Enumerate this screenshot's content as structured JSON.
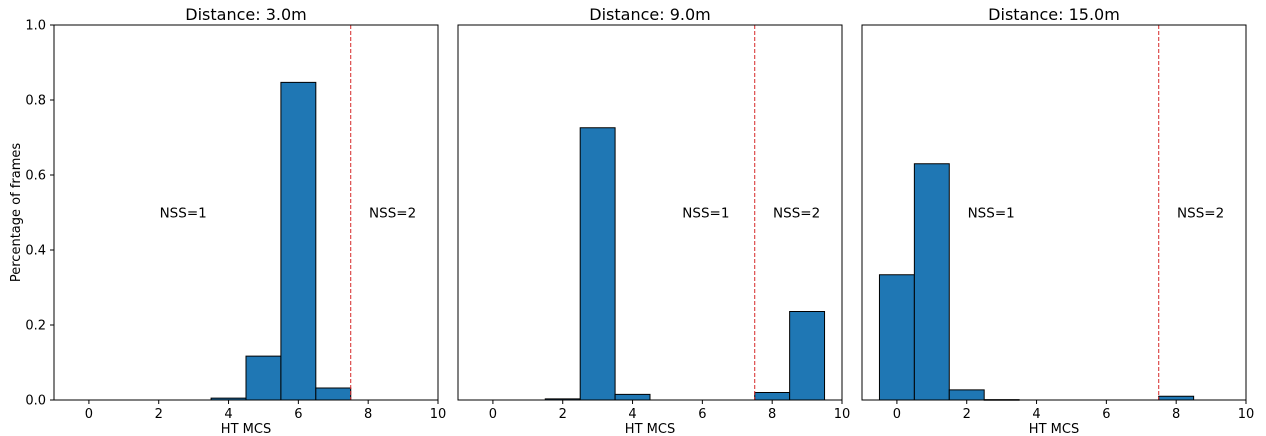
{
  "chart_data": [
    {
      "type": "bar",
      "title": "Distance: 3.0m",
      "xlabel": "HT MCS",
      "ylabel": "Percentage of frames",
      "xlim": [
        -1,
        10
      ],
      "ylim": [
        0,
        1.0
      ],
      "xticks": [
        0,
        2,
        4,
        6,
        8,
        10
      ],
      "yticks": [
        0.0,
        0.2,
        0.4,
        0.6,
        0.8,
        1.0
      ],
      "ytick_labels": [
        "0.0",
        "0.2",
        "0.4",
        "0.6",
        "0.8",
        "1.0"
      ],
      "bar_color": "#1f77b4",
      "threshold_color": "#d62728",
      "threshold_x": 7.5,
      "annotations": [
        {
          "text": "NSS=1",
          "x": 2.7,
          "y": 0.5
        },
        {
          "text": "NSS=2",
          "x": 8.7,
          "y": 0.5
        }
      ],
      "x": [
        0,
        1,
        2,
        3,
        4,
        5,
        6,
        7,
        8,
        9
      ],
      "values": [
        0.0,
        0.0,
        0.0,
        0.0,
        0.005,
        0.117,
        0.847,
        0.032,
        0.0,
        0.0
      ]
    },
    {
      "type": "bar",
      "title": "Distance: 9.0m",
      "xlabel": "HT MCS",
      "ylabel": "",
      "xlim": [
        -1,
        10
      ],
      "ylim": [
        0,
        1.0
      ],
      "xticks": [
        0,
        2,
        4,
        6,
        8,
        10
      ],
      "yticks": [],
      "ytick_labels": [],
      "bar_color": "#1f77b4",
      "threshold_color": "#d62728",
      "threshold_x": 7.5,
      "annotations": [
        {
          "text": "NSS=1",
          "x": 6.1,
          "y": 0.5
        },
        {
          "text": "NSS=2",
          "x": 8.7,
          "y": 0.5
        }
      ],
      "x": [
        0,
        1,
        2,
        3,
        4,
        5,
        6,
        7,
        8,
        9
      ],
      "values": [
        0.0,
        0.0,
        0.003,
        0.726,
        0.015,
        0.0,
        0.0,
        0.0,
        0.02,
        0.236
      ]
    },
    {
      "type": "bar",
      "title": "Distance: 15.0m",
      "xlabel": "HT MCS",
      "ylabel": "",
      "xlim": [
        -1,
        10
      ],
      "ylim": [
        0,
        1.0
      ],
      "xticks": [
        0,
        2,
        4,
        6,
        8,
        10
      ],
      "yticks": [],
      "ytick_labels": [],
      "bar_color": "#1f77b4",
      "threshold_color": "#d62728",
      "threshold_x": 7.5,
      "annotations": [
        {
          "text": "NSS=1",
          "x": 2.7,
          "y": 0.5
        },
        {
          "text": "NSS=2",
          "x": 8.7,
          "y": 0.5
        }
      ],
      "x": [
        0,
        1,
        2,
        3,
        4,
        5,
        6,
        7,
        8,
        9
      ],
      "values": [
        0.334,
        0.63,
        0.027,
        0.001,
        0.0,
        0.0,
        0.0,
        0.0,
        0.01,
        0.0
      ]
    }
  ]
}
